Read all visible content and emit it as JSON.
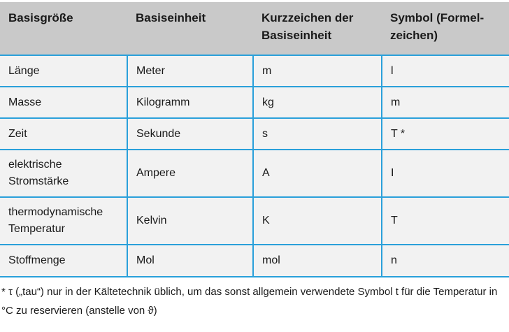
{
  "headers": [
    "Basisgröße",
    "Basiseinheit",
    "Kurzzeichen der Basiseinheit",
    "Symbol (Formel-zeichen)"
  ],
  "rows": [
    [
      "Länge",
      "Meter",
      "m",
      "l"
    ],
    [
      "Masse",
      "Kilogramm",
      "kg",
      "m"
    ],
    [
      "Zeit",
      "Sekunde",
      "s",
      "T *"
    ],
    [
      "elektrische Stromstärke",
      "Ampere",
      "A",
      "I"
    ],
    [
      "thermodynamische Temperatur",
      "Kelvin",
      "K",
      "T"
    ],
    [
      "Stoffmenge",
      "Mol",
      "mol",
      "n"
    ]
  ],
  "footnote": "* τ („tau“) nur in der Kältetechnik üblich, um das sonst allgemein verwendete Symbol t für die Temperatur in °C zu reservieren (anstelle von ϑ)",
  "colors": {
    "header": "#c9c9c9",
    "row": "#f2f2f2",
    "border": "#2aa0da"
  }
}
